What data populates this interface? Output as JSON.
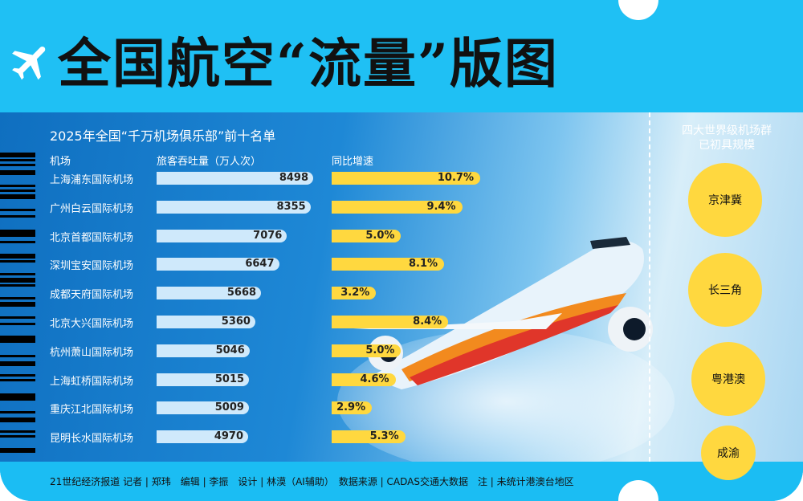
{
  "title": "全国航空“流量”版图",
  "chart_data": {
    "type": "bar",
    "title": "2025年全国“千万机场俱乐部”前十名单",
    "headers": {
      "airport": "机场",
      "throughput": "旅客吞吐量（万人次）",
      "growth": "同比增速"
    },
    "categories": [
      "上海浦东国际机场",
      "广州白云国际机场",
      "北京首都国际机场",
      "深圳宝安国际机场",
      "成都天府国际机场",
      "北京大兴国际机场",
      "杭州萧山国际机场",
      "上海虹桥国际机场",
      "重庆江北国际机场",
      "昆明长水国际机场"
    ],
    "series": [
      {
        "name": "旅客吞吐量（万人次）",
        "values": [
          8498,
          8355,
          7076,
          6647,
          5668,
          5360,
          5046,
          5015,
          5009,
          4970
        ]
      },
      {
        "name": "同比增速",
        "values": [
          10.7,
          9.4,
          5.0,
          8.1,
          3.2,
          8.4,
          5.0,
          4.6,
          2.9,
          5.3
        ],
        "labels": [
          "10.7%",
          "9.4%",
          "5.0%",
          "8.1%",
          "3.2%",
          "8.4%",
          "5.0%",
          "4.6%",
          "2.9%",
          "5.3%"
        ]
      }
    ]
  },
  "clusters": {
    "title_line1": "四大世界级机场群",
    "title_line2": "已初具规模",
    "items": [
      "京津冀",
      "长三角",
      "粤港澳",
      "成渝"
    ]
  },
  "credit": "21世纪经济报道 记者 | 郑玮　编辑 | 李振　设计 | 林漠（AI辅助）　数据来源 | CADAS交通大数据　注 | 未统计港澳台地区",
  "colors": {
    "top": "#1fc0f4",
    "bar_throughput": "#cfe9fb",
    "bar_growth": "#ffd83f"
  }
}
